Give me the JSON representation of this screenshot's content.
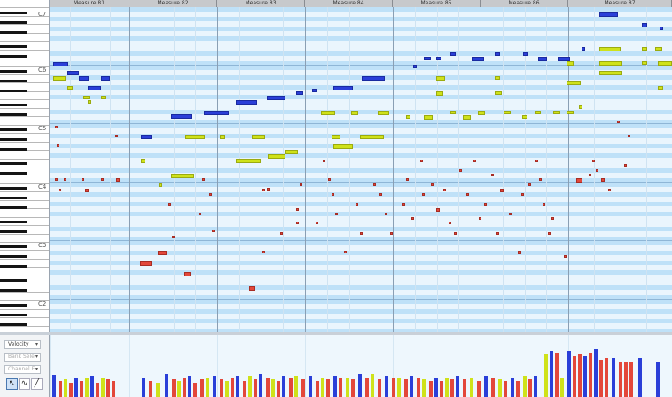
{
  "measures": [
    "Measure 81",
    "Measure 82",
    "Measure 83",
    "Measure 84",
    "Measure 85",
    "Measure 86",
    "Measure 87"
  ],
  "octave_labels": [
    "C7",
    "C6",
    "C5",
    "C4",
    "C3",
    "C2"
  ],
  "controller_lanes": {
    "selected": "Velocity",
    "bank": "Bank Sele",
    "channel": "Channel E"
  },
  "tools": [
    "select-tool",
    "draw-curve-tool",
    "line-tool"
  ],
  "colors": {
    "lane_light": "#eaf5fd",
    "lane_dark": "#bfe1f8",
    "blue_note": "#2a3fd8",
    "yellow_note": "#cfe21a",
    "red_note": "#e3473a"
  }
}
